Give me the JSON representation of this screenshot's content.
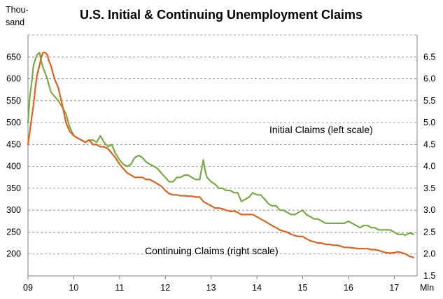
{
  "chart_data": {
    "type": "line",
    "title": "U.S. Initial & Continuing Unemployment Claims",
    "left_axis": {
      "unit_label_line1": "Thou-",
      "unit_label_line2": "sand",
      "range": [
        150,
        700
      ],
      "ticks": [
        "200",
        "250",
        "300",
        "350",
        "400",
        "450",
        "500",
        "550",
        "600",
        "650"
      ],
      "tick_values": [
        200,
        250,
        300,
        350,
        400,
        450,
        500,
        550,
        600,
        650
      ]
    },
    "right_axis": {
      "unit_label": "Mln",
      "range": [
        1.5,
        7.0
      ],
      "ticks": [
        "1.5",
        "2.0",
        "2.5",
        "3.0",
        "3.5",
        "4.0",
        "4.5",
        "5.0",
        "5.5",
        "6.0",
        "6.5"
      ],
      "tick_values": [
        1.5,
        2.0,
        2.5,
        3.0,
        3.5,
        4.0,
        4.5,
        5.0,
        5.5,
        6.0,
        6.5
      ]
    },
    "x_axis": {
      "range": [
        2009.0,
        2017.5
      ],
      "ticks": [
        "09",
        "10",
        "11",
        "12",
        "13",
        "14",
        "15",
        "16",
        "17"
      ],
      "tick_values": [
        2009,
        2010,
        2011,
        2012,
        2013,
        2014,
        2015,
        2016,
        2017
      ]
    },
    "grid": true,
    "series": [
      {
        "name": "Initial Claims (left scale)",
        "axis": "left",
        "color": "#77ab43",
        "points": [
          [
            2009.0,
            500
          ],
          [
            2009.04,
            560
          ],
          [
            2009.08,
            590
          ],
          [
            2009.12,
            630
          ],
          [
            2009.16,
            645
          ],
          [
            2009.2,
            655
          ],
          [
            2009.25,
            660
          ],
          [
            2009.29,
            640
          ],
          [
            2009.33,
            625
          ],
          [
            2009.37,
            615
          ],
          [
            2009.42,
            600
          ],
          [
            2009.46,
            585
          ],
          [
            2009.5,
            570
          ],
          [
            2009.58,
            560
          ],
          [
            2009.66,
            550
          ],
          [
            2009.75,
            535
          ],
          [
            2009.83,
            520
          ],
          [
            2009.91,
            490
          ],
          [
            2010.0,
            470
          ],
          [
            2010.08,
            465
          ],
          [
            2010.17,
            460
          ],
          [
            2010.25,
            455
          ],
          [
            2010.33,
            460
          ],
          [
            2010.42,
            460
          ],
          [
            2010.5,
            455
          ],
          [
            2010.58,
            470
          ],
          [
            2010.66,
            455
          ],
          [
            2010.75,
            445
          ],
          [
            2010.83,
            450
          ],
          [
            2010.91,
            430
          ],
          [
            2011.0,
            415
          ],
          [
            2011.08,
            405
          ],
          [
            2011.17,
            400
          ],
          [
            2011.25,
            405
          ],
          [
            2011.33,
            420
          ],
          [
            2011.42,
            425
          ],
          [
            2011.5,
            420
          ],
          [
            2011.58,
            410
          ],
          [
            2011.66,
            405
          ],
          [
            2011.75,
            400
          ],
          [
            2011.83,
            395
          ],
          [
            2011.91,
            385
          ],
          [
            2012.0,
            375
          ],
          [
            2012.08,
            365
          ],
          [
            2012.17,
            365
          ],
          [
            2012.25,
            375
          ],
          [
            2012.33,
            375
          ],
          [
            2012.42,
            380
          ],
          [
            2012.5,
            380
          ],
          [
            2012.58,
            375
          ],
          [
            2012.66,
            370
          ],
          [
            2012.75,
            370
          ],
          [
            2012.83,
            415
          ],
          [
            2012.87,
            390
          ],
          [
            2012.91,
            375
          ],
          [
            2013.0,
            365
          ],
          [
            2013.08,
            360
          ],
          [
            2013.17,
            350
          ],
          [
            2013.25,
            350
          ],
          [
            2013.33,
            345
          ],
          [
            2013.42,
            345
          ],
          [
            2013.5,
            340
          ],
          [
            2013.58,
            340
          ],
          [
            2013.66,
            320
          ],
          [
            2013.75,
            325
          ],
          [
            2013.83,
            330
          ],
          [
            2013.91,
            340
          ],
          [
            2014.0,
            335
          ],
          [
            2014.08,
            335
          ],
          [
            2014.17,
            325
          ],
          [
            2014.25,
            315
          ],
          [
            2014.33,
            310
          ],
          [
            2014.42,
            310
          ],
          [
            2014.5,
            300
          ],
          [
            2014.58,
            300
          ],
          [
            2014.66,
            295
          ],
          [
            2014.75,
            290
          ],
          [
            2014.83,
            290
          ],
          [
            2014.91,
            295
          ],
          [
            2015.0,
            300
          ],
          [
            2015.08,
            290
          ],
          [
            2015.17,
            285
          ],
          [
            2015.25,
            280
          ],
          [
            2015.33,
            280
          ],
          [
            2015.42,
            275
          ],
          [
            2015.5,
            270
          ],
          [
            2015.58,
            270
          ],
          [
            2015.66,
            270
          ],
          [
            2015.75,
            270
          ],
          [
            2015.83,
            270
          ],
          [
            2015.91,
            270
          ],
          [
            2016.0,
            275
          ],
          [
            2016.08,
            270
          ],
          [
            2016.17,
            265
          ],
          [
            2016.25,
            260
          ],
          [
            2016.33,
            265
          ],
          [
            2016.42,
            265
          ],
          [
            2016.5,
            260
          ],
          [
            2016.58,
            260
          ],
          [
            2016.66,
            255
          ],
          [
            2016.75,
            255
          ],
          [
            2016.83,
            255
          ],
          [
            2016.91,
            255
          ],
          [
            2017.0,
            250
          ],
          [
            2017.08,
            245
          ],
          [
            2017.17,
            245
          ],
          [
            2017.25,
            243
          ],
          [
            2017.33,
            248
          ],
          [
            2017.42,
            245
          ]
        ]
      },
      {
        "name": "Continuing Claims (right scale)",
        "axis": "right",
        "color": "#e0621b",
        "points": [
          [
            2009.0,
            4.5
          ],
          [
            2009.04,
            4.8
          ],
          [
            2009.08,
            5.1
          ],
          [
            2009.12,
            5.4
          ],
          [
            2009.16,
            5.8
          ],
          [
            2009.2,
            6.1
          ],
          [
            2009.25,
            6.3
          ],
          [
            2009.29,
            6.5
          ],
          [
            2009.33,
            6.6
          ],
          [
            2009.37,
            6.6
          ],
          [
            2009.42,
            6.55
          ],
          [
            2009.46,
            6.4
          ],
          [
            2009.5,
            6.3
          ],
          [
            2009.58,
            6.0
          ],
          [
            2009.66,
            5.8
          ],
          [
            2009.75,
            5.4
          ],
          [
            2009.83,
            5.0
          ],
          [
            2009.91,
            4.8
          ],
          [
            2010.0,
            4.7
          ],
          [
            2010.08,
            4.65
          ],
          [
            2010.17,
            4.6
          ],
          [
            2010.25,
            4.55
          ],
          [
            2010.33,
            4.6
          ],
          [
            2010.42,
            4.5
          ],
          [
            2010.5,
            4.5
          ],
          [
            2010.58,
            4.45
          ],
          [
            2010.66,
            4.45
          ],
          [
            2010.75,
            4.4
          ],
          [
            2010.83,
            4.3
          ],
          [
            2010.91,
            4.2
          ],
          [
            2011.0,
            4.05
          ],
          [
            2011.08,
            3.95
          ],
          [
            2011.17,
            3.85
          ],
          [
            2011.25,
            3.8
          ],
          [
            2011.33,
            3.75
          ],
          [
            2011.42,
            3.75
          ],
          [
            2011.5,
            3.75
          ],
          [
            2011.58,
            3.7
          ],
          [
            2011.66,
            3.7
          ],
          [
            2011.75,
            3.65
          ],
          [
            2011.83,
            3.6
          ],
          [
            2011.91,
            3.55
          ],
          [
            2012.0,
            3.45
          ],
          [
            2012.08,
            3.38
          ],
          [
            2012.17,
            3.35
          ],
          [
            2012.25,
            3.35
          ],
          [
            2012.33,
            3.33
          ],
          [
            2012.42,
            3.33
          ],
          [
            2012.5,
            3.32
          ],
          [
            2012.58,
            3.32
          ],
          [
            2012.66,
            3.3
          ],
          [
            2012.75,
            3.3
          ],
          [
            2012.83,
            3.2
          ],
          [
            2012.91,
            3.15
          ],
          [
            2013.0,
            3.1
          ],
          [
            2013.08,
            3.05
          ],
          [
            2013.17,
            3.05
          ],
          [
            2013.25,
            3.03
          ],
          [
            2013.33,
            3.0
          ],
          [
            2013.42,
            2.97
          ],
          [
            2013.5,
            2.98
          ],
          [
            2013.58,
            2.95
          ],
          [
            2013.66,
            2.9
          ],
          [
            2013.75,
            2.9
          ],
          [
            2013.83,
            2.9
          ],
          [
            2013.91,
            2.9
          ],
          [
            2014.0,
            2.85
          ],
          [
            2014.08,
            2.8
          ],
          [
            2014.17,
            2.75
          ],
          [
            2014.25,
            2.7
          ],
          [
            2014.33,
            2.65
          ],
          [
            2014.42,
            2.6
          ],
          [
            2014.5,
            2.55
          ],
          [
            2014.58,
            2.52
          ],
          [
            2014.66,
            2.5
          ],
          [
            2014.75,
            2.45
          ],
          [
            2014.83,
            2.42
          ],
          [
            2014.91,
            2.4
          ],
          [
            2015.0,
            2.4
          ],
          [
            2015.08,
            2.35
          ],
          [
            2015.17,
            2.3
          ],
          [
            2015.25,
            2.28
          ],
          [
            2015.33,
            2.25
          ],
          [
            2015.42,
            2.25
          ],
          [
            2015.5,
            2.22
          ],
          [
            2015.58,
            2.22
          ],
          [
            2015.66,
            2.2
          ],
          [
            2015.75,
            2.2
          ],
          [
            2015.83,
            2.18
          ],
          [
            2015.91,
            2.15
          ],
          [
            2016.0,
            2.15
          ],
          [
            2016.08,
            2.14
          ],
          [
            2016.17,
            2.13
          ],
          [
            2016.25,
            2.12
          ],
          [
            2016.33,
            2.12
          ],
          [
            2016.42,
            2.12
          ],
          [
            2016.5,
            2.1
          ],
          [
            2016.58,
            2.1
          ],
          [
            2016.66,
            2.08
          ],
          [
            2016.75,
            2.05
          ],
          [
            2016.83,
            2.03
          ],
          [
            2016.91,
            2.02
          ],
          [
            2017.0,
            2.03
          ],
          [
            2017.08,
            2.05
          ],
          [
            2017.17,
            2.03
          ],
          [
            2017.25,
            2.0
          ],
          [
            2017.33,
            1.95
          ],
          [
            2017.42,
            1.92
          ]
        ]
      }
    ],
    "annotations": [
      {
        "text": "Initial Claims (left scale)"
      },
      {
        "text": "Continuing Claims (right scale)"
      }
    ]
  }
}
